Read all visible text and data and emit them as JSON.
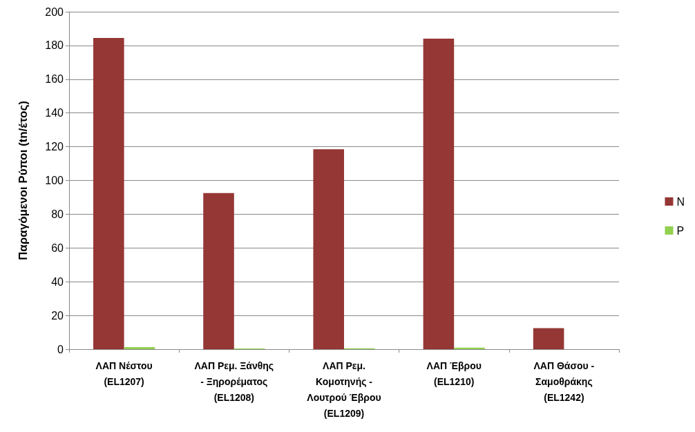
{
  "chart_data": {
    "type": "bar",
    "ylabel": "Παραγόμενοι Ρύποι (tn/έτος)",
    "categories": [
      "ΛΑΠ Νέστου\n(EL1207)",
      "ΛΑΠ Ρεμ. Ξάνθης\n- Ξηρορέματος\n(EL1208)",
      "ΛΑΠ Ρεμ.\nΚομοτηνής -\nΛουτρού Έβρου\n(EL1209)",
      "ΛΑΠ Έβρου\n(EL1210)",
      "ΛΑΠ Θάσου -\nΣαμοθράκης\n(EL1242)"
    ],
    "series": [
      {
        "name": "N",
        "color": "#953735",
        "values": [
          184.5,
          92.5,
          118.5,
          184,
          12.5
        ]
      },
      {
        "name": "P",
        "color": "#92d050",
        "values": [
          1.2,
          0.4,
          0.5,
          0.9,
          0
        ]
      }
    ],
    "ylim": [
      0,
      200
    ],
    "yticks": [
      0,
      20,
      40,
      60,
      80,
      100,
      120,
      140,
      160,
      180,
      200
    ],
    "grid": "y",
    "legend": "right"
  }
}
